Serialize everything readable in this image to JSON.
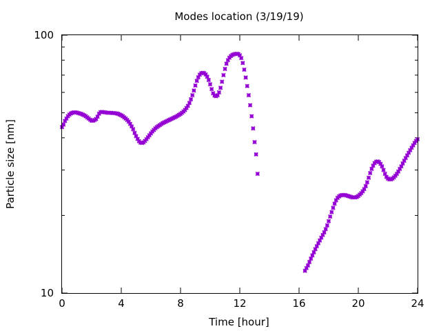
{
  "chart_data": {
    "type": "scatter",
    "title": "Modes location (3/19/19)",
    "xlabel": "Time [hour]",
    "ylabel": "Particle size [nm]",
    "xlim": [
      0,
      24
    ],
    "ylim": [
      10,
      100
    ],
    "y_scale": "log",
    "x_ticks": [
      "0",
      "4",
      "8",
      "12",
      "16",
      "20",
      "24"
    ],
    "y_ticks": [
      "10",
      "100"
    ],
    "grid": false,
    "marker_color": "#9400d3",
    "series": [
      {
        "values": [
          {
            "x": 0.0,
            "y": 44.0
          },
          {
            "x": 0.1,
            "y": 45.0
          },
          {
            "x": 0.2,
            "y": 46.5
          },
          {
            "x": 0.3,
            "y": 47.5
          },
          {
            "x": 0.4,
            "y": 48.5
          },
          {
            "x": 0.5,
            "y": 49.2
          },
          {
            "x": 0.6,
            "y": 49.7
          },
          {
            "x": 0.7,
            "y": 50.0
          },
          {
            "x": 0.8,
            "y": 50.2
          },
          {
            "x": 0.9,
            "y": 50.2
          },
          {
            "x": 1.0,
            "y": 50.1
          },
          {
            "x": 1.1,
            "y": 49.9
          },
          {
            "x": 1.2,
            "y": 49.7
          },
          {
            "x": 1.3,
            "y": 49.5
          },
          {
            "x": 1.4,
            "y": 49.2
          },
          {
            "x": 1.5,
            "y": 48.9
          },
          {
            "x": 1.6,
            "y": 48.5
          },
          {
            "x": 1.7,
            "y": 48.0
          },
          {
            "x": 1.8,
            "y": 47.5
          },
          {
            "x": 1.9,
            "y": 47.0
          },
          {
            "x": 2.0,
            "y": 46.6
          },
          {
            "x": 2.1,
            "y": 46.6
          },
          {
            "x": 2.2,
            "y": 46.9
          },
          {
            "x": 2.3,
            "y": 47.3
          },
          {
            "x": 2.4,
            "y": 48.3
          },
          {
            "x": 2.5,
            "y": 49.6
          },
          {
            "x": 2.6,
            "y": 50.3
          },
          {
            "x": 2.7,
            "y": 50.4
          },
          {
            "x": 2.8,
            "y": 50.3
          },
          {
            "x": 2.9,
            "y": 50.2
          },
          {
            "x": 3.0,
            "y": 50.1
          },
          {
            "x": 3.1,
            "y": 50.0
          },
          {
            "x": 3.2,
            "y": 50.0
          },
          {
            "x": 3.3,
            "y": 50.0
          },
          {
            "x": 3.4,
            "y": 49.9
          },
          {
            "x": 3.5,
            "y": 49.9
          },
          {
            "x": 3.6,
            "y": 49.8
          },
          {
            "x": 3.7,
            "y": 49.7
          },
          {
            "x": 3.8,
            "y": 49.5
          },
          {
            "x": 3.9,
            "y": 49.2
          },
          {
            "x": 4.0,
            "y": 48.9
          },
          {
            "x": 4.1,
            "y": 48.5
          },
          {
            "x": 4.2,
            "y": 48.0
          },
          {
            "x": 4.3,
            "y": 47.5
          },
          {
            "x": 4.4,
            "y": 46.9
          },
          {
            "x": 4.5,
            "y": 46.2
          },
          {
            "x": 4.6,
            "y": 45.3
          },
          {
            "x": 4.7,
            "y": 44.3
          },
          {
            "x": 4.8,
            "y": 43.2
          },
          {
            "x": 4.9,
            "y": 41.8
          },
          {
            "x": 5.0,
            "y": 40.6
          },
          {
            "x": 5.1,
            "y": 39.6
          },
          {
            "x": 5.2,
            "y": 38.8
          },
          {
            "x": 5.3,
            "y": 38.3
          },
          {
            "x": 5.4,
            "y": 38.2
          },
          {
            "x": 5.5,
            "y": 38.4
          },
          {
            "x": 5.6,
            "y": 38.9
          },
          {
            "x": 5.7,
            "y": 39.5
          },
          {
            "x": 5.8,
            "y": 40.2
          },
          {
            "x": 5.9,
            "y": 40.9
          },
          {
            "x": 6.0,
            "y": 41.6
          },
          {
            "x": 6.1,
            "y": 42.3
          },
          {
            "x": 6.2,
            "y": 42.9
          },
          {
            "x": 6.3,
            "y": 43.5
          },
          {
            "x": 6.4,
            "y": 44.0
          },
          {
            "x": 6.5,
            "y": 44.4
          },
          {
            "x": 6.6,
            "y": 44.8
          },
          {
            "x": 6.7,
            "y": 45.2
          },
          {
            "x": 6.8,
            "y": 45.6
          },
          {
            "x": 6.9,
            "y": 45.9
          },
          {
            "x": 7.0,
            "y": 46.2
          },
          {
            "x": 7.1,
            "y": 46.5
          },
          {
            "x": 7.2,
            "y": 46.8
          },
          {
            "x": 7.3,
            "y": 47.1
          },
          {
            "x": 7.4,
            "y": 47.4
          },
          {
            "x": 7.5,
            "y": 47.7
          },
          {
            "x": 7.6,
            "y": 48.0
          },
          {
            "x": 7.7,
            "y": 48.3
          },
          {
            "x": 7.8,
            "y": 48.7
          },
          {
            "x": 7.9,
            "y": 49.1
          },
          {
            "x": 8.0,
            "y": 49.5
          },
          {
            "x": 8.1,
            "y": 50.0
          },
          {
            "x": 8.2,
            "y": 50.6
          },
          {
            "x": 8.3,
            "y": 51.3
          },
          {
            "x": 8.4,
            "y": 52.2
          },
          {
            "x": 8.5,
            "y": 53.2
          },
          {
            "x": 8.6,
            "y": 54.6
          },
          {
            "x": 8.7,
            "y": 56.4
          },
          {
            "x": 8.8,
            "y": 58.5
          },
          {
            "x": 8.9,
            "y": 61.0
          },
          {
            "x": 9.0,
            "y": 63.8
          },
          {
            "x": 9.1,
            "y": 66.5
          },
          {
            "x": 9.2,
            "y": 68.7
          },
          {
            "x": 9.3,
            "y": 70.3
          },
          {
            "x": 9.4,
            "y": 71.2
          },
          {
            "x": 9.5,
            "y": 71.5
          },
          {
            "x": 9.6,
            "y": 71.2
          },
          {
            "x": 9.7,
            "y": 70.4
          },
          {
            "x": 9.8,
            "y": 69.0
          },
          {
            "x": 9.9,
            "y": 67.0
          },
          {
            "x": 10.0,
            "y": 64.5
          },
          {
            "x": 10.1,
            "y": 61.8
          },
          {
            "x": 10.2,
            "y": 59.5
          },
          {
            "x": 10.3,
            "y": 58.3
          },
          {
            "x": 10.4,
            "y": 58.0
          },
          {
            "x": 10.5,
            "y": 58.5
          },
          {
            "x": 10.6,
            "y": 60.0
          },
          {
            "x": 10.7,
            "y": 62.5
          },
          {
            "x": 10.8,
            "y": 66.0
          },
          {
            "x": 10.9,
            "y": 70.0
          },
          {
            "x": 11.0,
            "y": 74.0
          },
          {
            "x": 11.1,
            "y": 77.5
          },
          {
            "x": 11.2,
            "y": 80.0
          },
          {
            "x": 11.3,
            "y": 81.8
          },
          {
            "x": 11.4,
            "y": 83.0
          },
          {
            "x": 11.5,
            "y": 83.8
          },
          {
            "x": 11.6,
            "y": 84.3
          },
          {
            "x": 11.7,
            "y": 84.6
          },
          {
            "x": 11.8,
            "y": 84.7
          },
          {
            "x": 11.9,
            "y": 84.5
          },
          {
            "x": 12.0,
            "y": 83.5
          },
          {
            "x": 12.1,
            "y": 81.5
          },
          {
            "x": 12.2,
            "y": 78.0
          },
          {
            "x": 12.3,
            "y": 73.5
          },
          {
            "x": 12.4,
            "y": 68.5
          },
          {
            "x": 12.5,
            "y": 63.5
          },
          {
            "x": 12.6,
            "y": 58.5
          },
          {
            "x": 12.7,
            "y": 53.5
          },
          {
            "x": 12.8,
            "y": 48.5
          },
          {
            "x": 12.9,
            "y": 43.5
          },
          {
            "x": 13.0,
            "y": 38.5
          },
          {
            "x": 13.1,
            "y": 34.5
          },
          {
            "x": 13.2,
            "y": 29.0
          }
        ]
      },
      {
        "values": [
          {
            "x": 16.4,
            "y": 12.2
          },
          {
            "x": 16.5,
            "y": 12.5
          },
          {
            "x": 16.6,
            "y": 12.8
          },
          {
            "x": 16.7,
            "y": 13.2
          },
          {
            "x": 16.8,
            "y": 13.6
          },
          {
            "x": 16.9,
            "y": 14.0
          },
          {
            "x": 17.0,
            "y": 14.4
          },
          {
            "x": 17.1,
            "y": 14.8
          },
          {
            "x": 17.2,
            "y": 15.2
          },
          {
            "x": 17.3,
            "y": 15.6
          },
          {
            "x": 17.4,
            "y": 16.0
          },
          {
            "x": 17.5,
            "y": 16.4
          },
          {
            "x": 17.6,
            "y": 16.8
          },
          {
            "x": 17.7,
            "y": 17.2
          },
          {
            "x": 17.8,
            "y": 17.7
          },
          {
            "x": 17.9,
            "y": 18.3
          },
          {
            "x": 18.0,
            "y": 19.0
          },
          {
            "x": 18.1,
            "y": 19.8
          },
          {
            "x": 18.2,
            "y": 20.6
          },
          {
            "x": 18.3,
            "y": 21.4
          },
          {
            "x": 18.4,
            "y": 22.2
          },
          {
            "x": 18.5,
            "y": 22.9
          },
          {
            "x": 18.6,
            "y": 23.4
          },
          {
            "x": 18.7,
            "y": 23.7
          },
          {
            "x": 18.8,
            "y": 23.9
          },
          {
            "x": 18.9,
            "y": 24.0
          },
          {
            "x": 19.0,
            "y": 24.0
          },
          {
            "x": 19.1,
            "y": 24.0
          },
          {
            "x": 19.2,
            "y": 23.9
          },
          {
            "x": 19.3,
            "y": 23.8
          },
          {
            "x": 19.4,
            "y": 23.7
          },
          {
            "x": 19.5,
            "y": 23.6
          },
          {
            "x": 19.6,
            "y": 23.5
          },
          {
            "x": 19.7,
            "y": 23.5
          },
          {
            "x": 19.8,
            "y": 23.5
          },
          {
            "x": 19.9,
            "y": 23.6
          },
          {
            "x": 20.0,
            "y": 23.8
          },
          {
            "x": 20.1,
            "y": 24.1
          },
          {
            "x": 20.2,
            "y": 24.4
          },
          {
            "x": 20.3,
            "y": 24.8
          },
          {
            "x": 20.4,
            "y": 25.3
          },
          {
            "x": 20.5,
            "y": 26.0
          },
          {
            "x": 20.6,
            "y": 26.9
          },
          {
            "x": 20.7,
            "y": 28.0
          },
          {
            "x": 20.8,
            "y": 29.2
          },
          {
            "x": 20.9,
            "y": 30.3
          },
          {
            "x": 21.0,
            "y": 31.2
          },
          {
            "x": 21.1,
            "y": 31.9
          },
          {
            "x": 21.2,
            "y": 32.3
          },
          {
            "x": 21.3,
            "y": 32.4
          },
          {
            "x": 21.4,
            "y": 32.2
          },
          {
            "x": 21.5,
            "y": 31.7
          },
          {
            "x": 21.6,
            "y": 31.0
          },
          {
            "x": 21.7,
            "y": 30.0
          },
          {
            "x": 21.8,
            "y": 29.0
          },
          {
            "x": 21.9,
            "y": 28.2
          },
          {
            "x": 22.0,
            "y": 27.8
          },
          {
            "x": 22.1,
            "y": 27.6
          },
          {
            "x": 22.2,
            "y": 27.6
          },
          {
            "x": 22.3,
            "y": 27.8
          },
          {
            "x": 22.4,
            "y": 28.1
          },
          {
            "x": 22.5,
            "y": 28.5
          },
          {
            "x": 22.6,
            "y": 29.0
          },
          {
            "x": 22.7,
            "y": 29.6
          },
          {
            "x": 22.8,
            "y": 30.3
          },
          {
            "x": 22.9,
            "y": 31.0
          },
          {
            "x": 23.0,
            "y": 31.8
          },
          {
            "x": 23.1,
            "y": 32.6
          },
          {
            "x": 23.2,
            "y": 33.4
          },
          {
            "x": 23.3,
            "y": 34.2
          },
          {
            "x": 23.4,
            "y": 35.0
          },
          {
            "x": 23.5,
            "y": 35.8
          },
          {
            "x": 23.6,
            "y": 36.6
          },
          {
            "x": 23.7,
            "y": 37.4
          },
          {
            "x": 23.8,
            "y": 38.2
          },
          {
            "x": 23.9,
            "y": 38.9
          },
          {
            "x": 24.0,
            "y": 39.5
          }
        ]
      }
    ]
  }
}
